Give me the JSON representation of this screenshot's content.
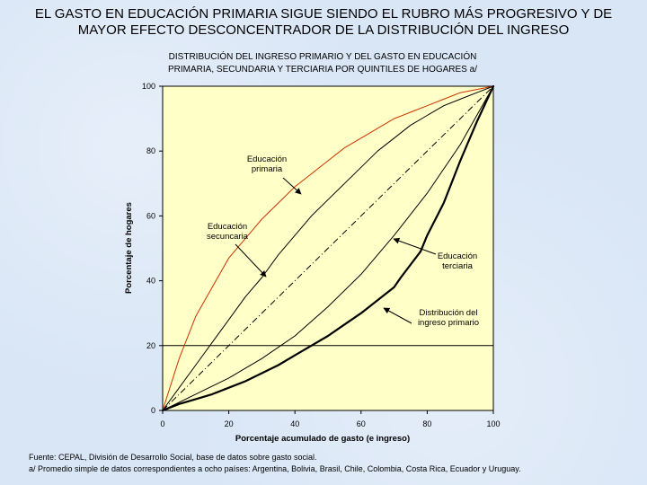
{
  "slide": {
    "title_line1": "EL GASTO EN EDUCACIÓN PRIMARIA SIGUE SIENDO EL RUBRO MÁS PROGRESIVO Y DE",
    "title_line2": "MAYOR EFECTO DESCONCENTRADOR DE LA DISTRIBUCIÓN DEL INGRESO",
    "source_note": "Fuente: CEPAL, División de Desarrollo Social, base de datos sobre gasto social.",
    "footnote": "a/ Promedio simple de datos correspondientes a ocho países: Argentina, Bolivia, Brasil, Chile, Colombia, Costa Rica, Ecuador y Uruguay."
  },
  "colors": {
    "background": "#d9e6f6",
    "plot_area": "#ffffc8",
    "primaria": "#cc3300",
    "black": "#000000"
  },
  "chart_data": {
    "type": "line",
    "title_line1": "DISTRIBUCIÓN DEL INGRESO PRIMARIO Y DEL GASTO EN EDUCACIÓN",
    "title_line2": "PRIMARIA, SECUNDARIA Y TERCIARIA POR QUINTILES DE HOGARES a/",
    "xlabel": "Porcentaje acumulado de gasto (e ingreso)",
    "ylabel": "Porcentaje de hogares",
    "xlim": [
      0,
      100
    ],
    "ylim": [
      0,
      100
    ],
    "xticks": [
      "0",
      "20",
      "40",
      "60",
      "80",
      "100"
    ],
    "yticks": [
      "0",
      "20",
      "40",
      "60",
      "80",
      "100"
    ],
    "grid": false,
    "reference_line_y": 20,
    "diagonal": true,
    "series": [
      {
        "name": "Educación primaria",
        "color": "#cc3300",
        "stroke": 1,
        "x": [
          0,
          5,
          10,
          15,
          20,
          25,
          30,
          35,
          40,
          45,
          50,
          55,
          60,
          65,
          70,
          75,
          80,
          85,
          90,
          95,
          100
        ],
        "y": [
          0,
          16,
          29,
          38,
          47,
          53,
          59,
          64,
          69,
          73,
          77,
          81,
          84,
          87,
          90,
          92,
          94,
          96,
          98,
          99,
          100
        ]
      },
      {
        "name": "Educación secuncaria",
        "color": "#000000",
        "stroke": 1,
        "x": [
          0,
          5,
          10,
          15,
          20,
          25,
          30,
          35,
          40,
          45,
          50,
          55,
          60,
          65,
          70,
          75,
          80,
          85,
          90,
          95,
          100
        ],
        "y": [
          0,
          7,
          14,
          21,
          28,
          35,
          41,
          48,
          54,
          60,
          65,
          70,
          75,
          80,
          84,
          88,
          91,
          94,
          96,
          98,
          100
        ]
      },
      {
        "name": "Educación terciaria",
        "color": "#000000",
        "stroke": 1,
        "x": [
          0,
          10,
          20,
          30,
          40,
          50,
          60,
          70,
          80,
          90,
          95,
          100
        ],
        "y": [
          0,
          5,
          10,
          16,
          23,
          32,
          42,
          54,
          67,
          82,
          91,
          100
        ]
      },
      {
        "name": "Distribución del ingreso primario",
        "color": "#000000",
        "stroke": 2.2,
        "x": [
          0,
          5,
          10,
          15,
          20,
          25,
          30,
          35,
          40,
          45,
          50,
          55,
          60,
          65,
          70,
          72,
          75,
          78,
          80,
          85,
          90,
          95,
          100
        ],
        "y": [
          0,
          2,
          3.5,
          5,
          7,
          9,
          11.5,
          14,
          17,
          20,
          23,
          26.5,
          30,
          34,
          38,
          41,
          45,
          49,
          54,
          64,
          77,
          89,
          100
        ]
      }
    ],
    "annotations": [
      {
        "line1": "Educación",
        "line2": "primaria",
        "series": 0
      },
      {
        "line1": "Educación",
        "line2": "secuncaria",
        "series": 1
      },
      {
        "line1": "Educación",
        "line2": "terciaria",
        "series": 2
      },
      {
        "line1": "Distribución  del",
        "line2": "ingreso primario",
        "series": 3
      }
    ]
  }
}
